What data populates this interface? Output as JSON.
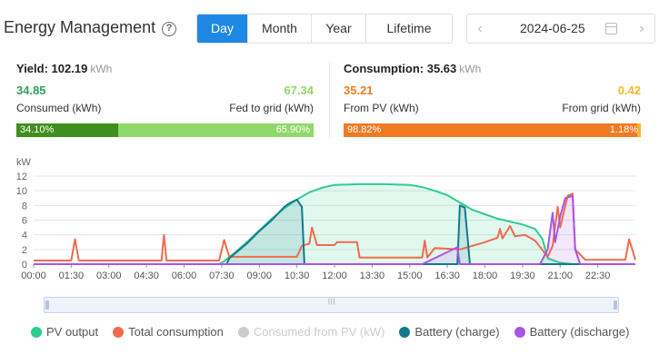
{
  "header": {
    "title": "Energy Management",
    "tabs": [
      {
        "label": "Day",
        "active": true
      },
      {
        "label": "Month",
        "active": false
      },
      {
        "label": "Year",
        "active": false
      },
      {
        "label": "Lifetime",
        "active": false
      }
    ],
    "date": "2024-06-25"
  },
  "yield": {
    "label": "Yield:",
    "value": "102.19",
    "unit": "kWh",
    "consumed_value": "34.85",
    "consumed_label": "Consumed (kWh)",
    "fed_value": "67.34",
    "fed_label": "Fed to grid (kWh)",
    "bar_left_pct": "34.10%",
    "bar_right_pct": "65.90%",
    "bar_left_fraction": 0.341,
    "colors": {
      "left": "#3f8f1f",
      "right": "#8fd86a",
      "consumed_text": "#2e9e5e",
      "fed_text": "#8fd86a"
    }
  },
  "consumption": {
    "label": "Consumption:",
    "value": "35.63",
    "unit": "kWh",
    "pv_value": "35.21",
    "pv_label": "From PV (kWh)",
    "grid_value": "0.42",
    "grid_label": "From grid (kWh)",
    "bar_left_pct": "98.82%",
    "bar_right_pct": "1.18%",
    "bar_left_fraction": 0.9882,
    "colors": {
      "left": "#f07a22",
      "right": "#f5b731",
      "pv_text": "#f07a22",
      "grid_text": "#f5b731"
    }
  },
  "chart_data": {
    "type": "line",
    "ylabel": "kW",
    "ylim": [
      0,
      12
    ],
    "yticks": [
      "0",
      "2",
      "4",
      "6",
      "8",
      "10",
      "12"
    ],
    "xticks": [
      "00:00",
      "01:30",
      "03:00",
      "04:30",
      "06:00",
      "07:30",
      "09:00",
      "10:30",
      "12:00",
      "13:30",
      "15:00",
      "16:30",
      "18:00",
      "19:30",
      "21:00",
      "22:30"
    ],
    "x_range_hours": [
      0,
      24
    ],
    "grid": true,
    "series": [
      {
        "name": "PV output",
        "color": "#2ecc8f",
        "visible": true,
        "fill": true,
        "points": [
          [
            0,
            0
          ],
          [
            7.4,
            0
          ],
          [
            7.6,
            0.4
          ],
          [
            8.0,
            1.5
          ],
          [
            8.5,
            3.0
          ],
          [
            9.0,
            4.6
          ],
          [
            9.5,
            6.2
          ],
          [
            10.0,
            7.6
          ],
          [
            10.5,
            8.8
          ],
          [
            11.0,
            9.8
          ],
          [
            11.5,
            10.4
          ],
          [
            12.0,
            10.8
          ],
          [
            13.0,
            10.9
          ],
          [
            14.0,
            10.9
          ],
          [
            15.0,
            10.8
          ],
          [
            15.5,
            10.5
          ],
          [
            16.0,
            10.0
          ],
          [
            16.5,
            9.4
          ],
          [
            17.0,
            8.4
          ],
          [
            17.5,
            7.4
          ],
          [
            18.0,
            6.8
          ],
          [
            18.5,
            6.2
          ],
          [
            19.0,
            5.8
          ],
          [
            19.5,
            5.4
          ],
          [
            20.0,
            4.8
          ],
          [
            20.3,
            3.4
          ],
          [
            20.5,
            0.8
          ],
          [
            21.0,
            0.2
          ],
          [
            21.5,
            0
          ],
          [
            24,
            0
          ]
        ]
      },
      {
        "name": "Total consumption",
        "color": "#ef6b4b",
        "visible": true,
        "fill": false,
        "points": [
          [
            0,
            0.5
          ],
          [
            1.5,
            0.5
          ],
          [
            1.65,
            3.4
          ],
          [
            1.8,
            0.5
          ],
          [
            5.1,
            0.5
          ],
          [
            5.2,
            4.0
          ],
          [
            5.3,
            0.5
          ],
          [
            7.4,
            0.5
          ],
          [
            7.6,
            3.3
          ],
          [
            7.8,
            1.0
          ],
          [
            10.5,
            1.0
          ],
          [
            10.7,
            2.5
          ],
          [
            11.0,
            2.8
          ],
          [
            11.1,
            5.0
          ],
          [
            11.3,
            2.6
          ],
          [
            12.0,
            2.6
          ],
          [
            12.1,
            3.0
          ],
          [
            12.9,
            3.0
          ],
          [
            13.0,
            0.9
          ],
          [
            15.5,
            0.9
          ],
          [
            15.6,
            3.2
          ],
          [
            15.7,
            0.9
          ],
          [
            16.0,
            2.2
          ],
          [
            17.0,
            2.0
          ],
          [
            18.0,
            3.0
          ],
          [
            18.5,
            3.6
          ],
          [
            18.6,
            4.8
          ],
          [
            18.7,
            3.5
          ],
          [
            19.0,
            5.2
          ],
          [
            19.2,
            3.8
          ],
          [
            19.6,
            4.0
          ],
          [
            20.0,
            3.2
          ],
          [
            20.5,
            1.0
          ],
          [
            20.7,
            2.5
          ],
          [
            20.9,
            7.8
          ],
          [
            21.0,
            5.0
          ],
          [
            21.3,
            9.3
          ],
          [
            21.5,
            9.6
          ],
          [
            21.6,
            2.0
          ],
          [
            22.0,
            0.6
          ],
          [
            23.6,
            0.6
          ],
          [
            23.75,
            3.4
          ],
          [
            24,
            0.6
          ]
        ]
      },
      {
        "name": "Consumed from PV (kW)",
        "color": "#cccccc",
        "visible": false,
        "fill": false,
        "points": []
      },
      {
        "name": "Battery (charge)",
        "color": "#117a8b",
        "visible": true,
        "fill": true,
        "points": [
          [
            0,
            0
          ],
          [
            7.7,
            0
          ],
          [
            7.8,
            0.8
          ],
          [
            8.5,
            2.8
          ],
          [
            9.0,
            4.5
          ],
          [
            9.5,
            6.0
          ],
          [
            10.0,
            7.8
          ],
          [
            10.2,
            8.3
          ],
          [
            10.5,
            8.8
          ],
          [
            10.7,
            7.8
          ],
          [
            10.8,
            0
          ],
          [
            16.9,
            0
          ],
          [
            17.0,
            8.0
          ],
          [
            17.2,
            7.7
          ],
          [
            17.4,
            0
          ],
          [
            24,
            0
          ]
        ]
      },
      {
        "name": "Battery (discharge)",
        "color": "#a855e8",
        "visible": true,
        "fill": true,
        "points": [
          [
            0,
            0
          ],
          [
            15.5,
            0
          ],
          [
            16.9,
            2.3
          ],
          [
            17.0,
            0
          ],
          [
            20.2,
            0
          ],
          [
            20.5,
            2.0
          ],
          [
            20.7,
            7.0
          ],
          [
            20.8,
            3.0
          ],
          [
            21.0,
            6.5
          ],
          [
            21.2,
            9.0
          ],
          [
            21.5,
            9.3
          ],
          [
            21.6,
            2.0
          ],
          [
            21.8,
            0
          ],
          [
            24,
            0
          ]
        ]
      }
    ]
  }
}
